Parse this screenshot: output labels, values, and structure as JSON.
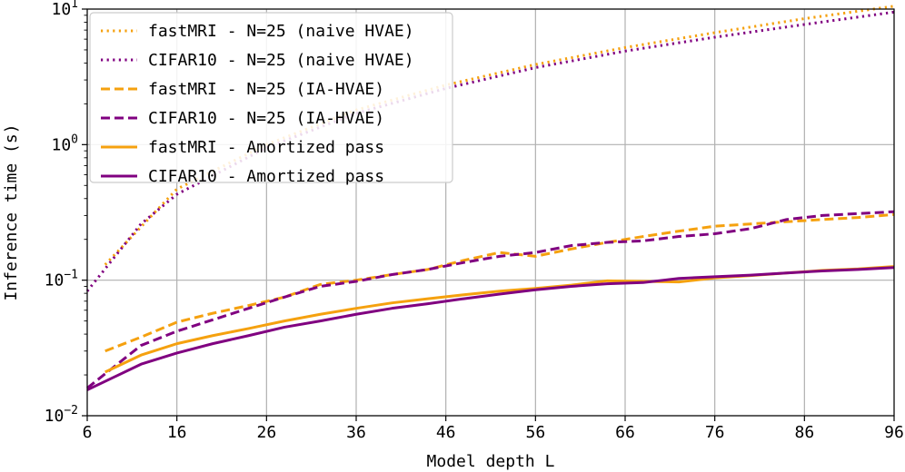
{
  "chart_data": {
    "type": "line",
    "title": "",
    "xlabel": "Model depth L",
    "ylabel": "Inference time (s)",
    "yscale": "log",
    "xlim": [
      6,
      96
    ],
    "ylim": [
      0.01,
      10
    ],
    "grid": true,
    "legend_position": "top-left",
    "x_ticks": [
      6,
      16,
      26,
      36,
      46,
      56,
      66,
      76,
      86,
      96
    ],
    "x_tick_labels": [
      "6",
      "16",
      "26",
      "36",
      "46",
      "56",
      "66",
      "76",
      "86",
      "96"
    ],
    "y_ticks": [
      0.01,
      0.1,
      1,
      10
    ],
    "y_tick_labels": [
      {
        "base": "10",
        "exp": "−2"
      },
      {
        "base": "10",
        "exp": "−1"
      },
      {
        "base": "10",
        "exp": "0"
      },
      {
        "base": "10",
        "exp": "1"
      }
    ],
    "series": [
      {
        "name": "fastMRI - N=25 (naive HVAE)",
        "color": "#f5a10f",
        "style": "dotted",
        "x": [
          8,
          16,
          26,
          36,
          46,
          56,
          66,
          76,
          86,
          96
        ],
        "y": [
          0.13,
          0.47,
          1.0,
          1.8,
          2.75,
          3.9,
          5.2,
          6.7,
          8.5,
          10.5
        ]
      },
      {
        "name": "CIFAR10 - N=25 (naive HVAE)",
        "color": "#800080",
        "style": "dotted",
        "x": [
          6,
          12,
          16,
          26,
          36,
          46,
          56,
          66,
          76,
          86,
          96
        ],
        "y": [
          0.083,
          0.26,
          0.43,
          0.95,
          1.7,
          2.6,
          3.7,
          4.9,
          6.2,
          7.7,
          9.5
        ]
      },
      {
        "name": "fastMRI - N=25 (IA-HVAE)",
        "color": "#f5a10f",
        "style": "dashed",
        "x": [
          8,
          12,
          16,
          20,
          24,
          28,
          32,
          36,
          40,
          44,
          48,
          52,
          56,
          60,
          64,
          68,
          72,
          76,
          80,
          84,
          88,
          92,
          96
        ],
        "y": [
          0.03,
          0.038,
          0.049,
          0.057,
          0.065,
          0.075,
          0.093,
          0.1,
          0.11,
          0.12,
          0.14,
          0.16,
          0.15,
          0.17,
          0.19,
          0.21,
          0.23,
          0.25,
          0.26,
          0.27,
          0.28,
          0.29,
          0.305
        ]
      },
      {
        "name": "CIFAR10 - N=25 (IA-HVAE)",
        "color": "#800080",
        "style": "dashed",
        "x": [
          6,
          12,
          16,
          20,
          24,
          28,
          32,
          36,
          40,
          44,
          48,
          52,
          56,
          60,
          64,
          68,
          72,
          76,
          80,
          84,
          88,
          92,
          96
        ],
        "y": [
          0.016,
          0.033,
          0.042,
          0.051,
          0.062,
          0.075,
          0.09,
          0.098,
          0.11,
          0.12,
          0.135,
          0.15,
          0.16,
          0.18,
          0.19,
          0.195,
          0.21,
          0.22,
          0.24,
          0.28,
          0.3,
          0.31,
          0.32
        ]
      },
      {
        "name": "fastMRI - Amortized pass",
        "color": "#f5a10f",
        "style": "solid",
        "x": [
          8,
          12,
          16,
          20,
          24,
          28,
          32,
          36,
          40,
          44,
          48,
          52,
          56,
          60,
          64,
          68,
          72,
          76,
          80,
          84,
          88,
          92,
          96
        ],
        "y": [
          0.021,
          0.028,
          0.034,
          0.039,
          0.044,
          0.05,
          0.056,
          0.062,
          0.068,
          0.073,
          0.078,
          0.083,
          0.087,
          0.092,
          0.099,
          0.098,
          0.097,
          0.104,
          0.108,
          0.113,
          0.118,
          0.121,
          0.126
        ]
      },
      {
        "name": "CIFAR10 - Amortized pass",
        "color": "#800080",
        "style": "solid",
        "x": [
          6,
          12,
          16,
          20,
          24,
          28,
          32,
          36,
          40,
          44,
          48,
          52,
          56,
          60,
          64,
          68,
          72,
          76,
          80,
          84,
          88,
          92,
          96
        ],
        "y": [
          0.0155,
          0.024,
          0.029,
          0.034,
          0.039,
          0.045,
          0.05,
          0.056,
          0.062,
          0.067,
          0.073,
          0.079,
          0.085,
          0.09,
          0.094,
          0.096,
          0.103,
          0.106,
          0.109,
          0.113,
          0.117,
          0.12,
          0.124
        ]
      }
    ]
  }
}
